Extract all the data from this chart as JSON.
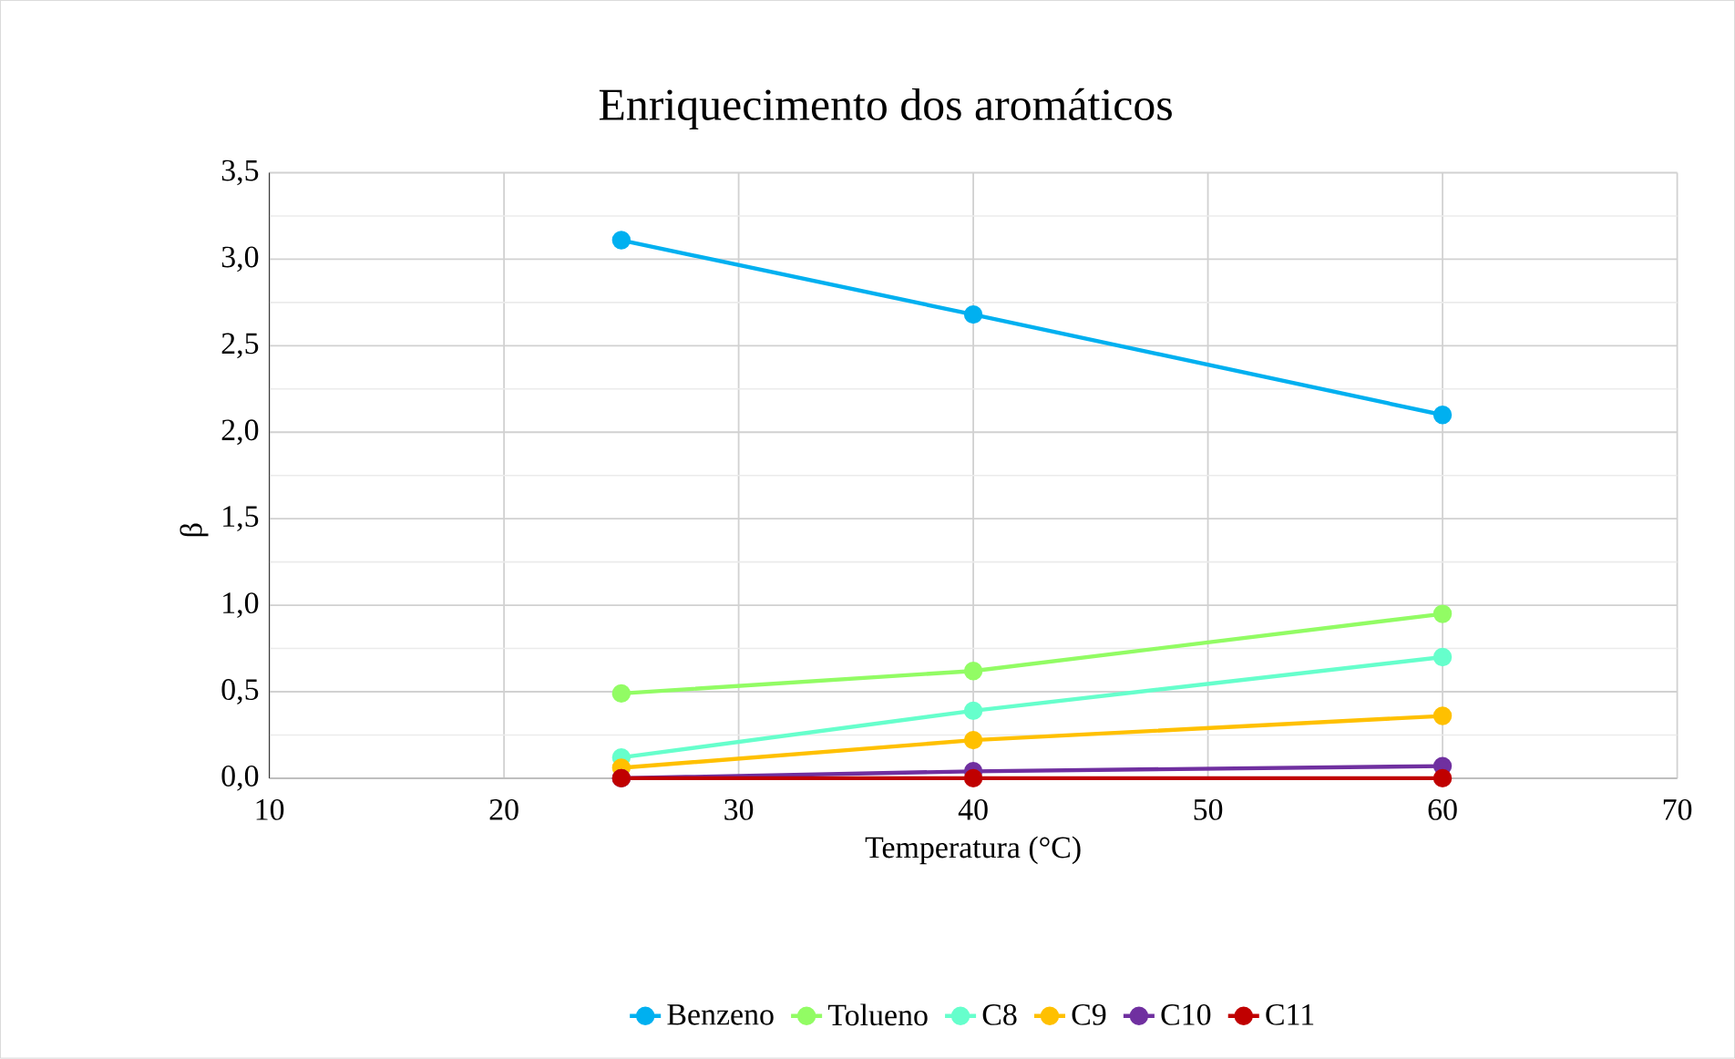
{
  "chart_data": {
    "type": "line",
    "title": "Enriquecimento dos aromáticos",
    "xlabel": "Temperatura (°C)",
    "ylabel": "β",
    "x": [
      25,
      40,
      60
    ],
    "series": [
      {
        "name": "Benzeno",
        "color": "#00b0f0",
        "values": [
          3.11,
          2.68,
          2.1
        ]
      },
      {
        "name": "Tolueno",
        "color": "#92fc64",
        "values": [
          0.49,
          0.62,
          0.95
        ]
      },
      {
        "name": "C8",
        "color": "#66ffcc",
        "values": [
          0.12,
          0.39,
          0.7
        ]
      },
      {
        "name": "C9",
        "color": "#ffc000",
        "values": [
          0.06,
          0.22,
          0.36
        ]
      },
      {
        "name": "C10",
        "color": "#7030a0",
        "values": [
          0.0,
          0.04,
          0.07
        ]
      },
      {
        "name": "C11",
        "color": "#c00000",
        "values": [
          0.0,
          0.0,
          0.0
        ]
      }
    ],
    "xlim": [
      10,
      70
    ],
    "xticks": [
      10,
      20,
      30,
      40,
      50,
      60,
      70
    ],
    "ylim": [
      0,
      3.5
    ],
    "yticks": [
      {
        "value": 0,
        "label": "0,0"
      },
      {
        "value": 0.5,
        "label": "0,5"
      },
      {
        "value": 1,
        "label": "1,0"
      },
      {
        "value": 1.5,
        "label": "1,5"
      },
      {
        "value": 2,
        "label": "2,0"
      },
      {
        "value": 2.5,
        "label": "2,5"
      },
      {
        "value": 3,
        "label": "3,0"
      },
      {
        "value": 3.5,
        "label": "3,5"
      }
    ],
    "grid": true,
    "legend": "bottom",
    "marker": "circle",
    "line_style": "solid"
  }
}
